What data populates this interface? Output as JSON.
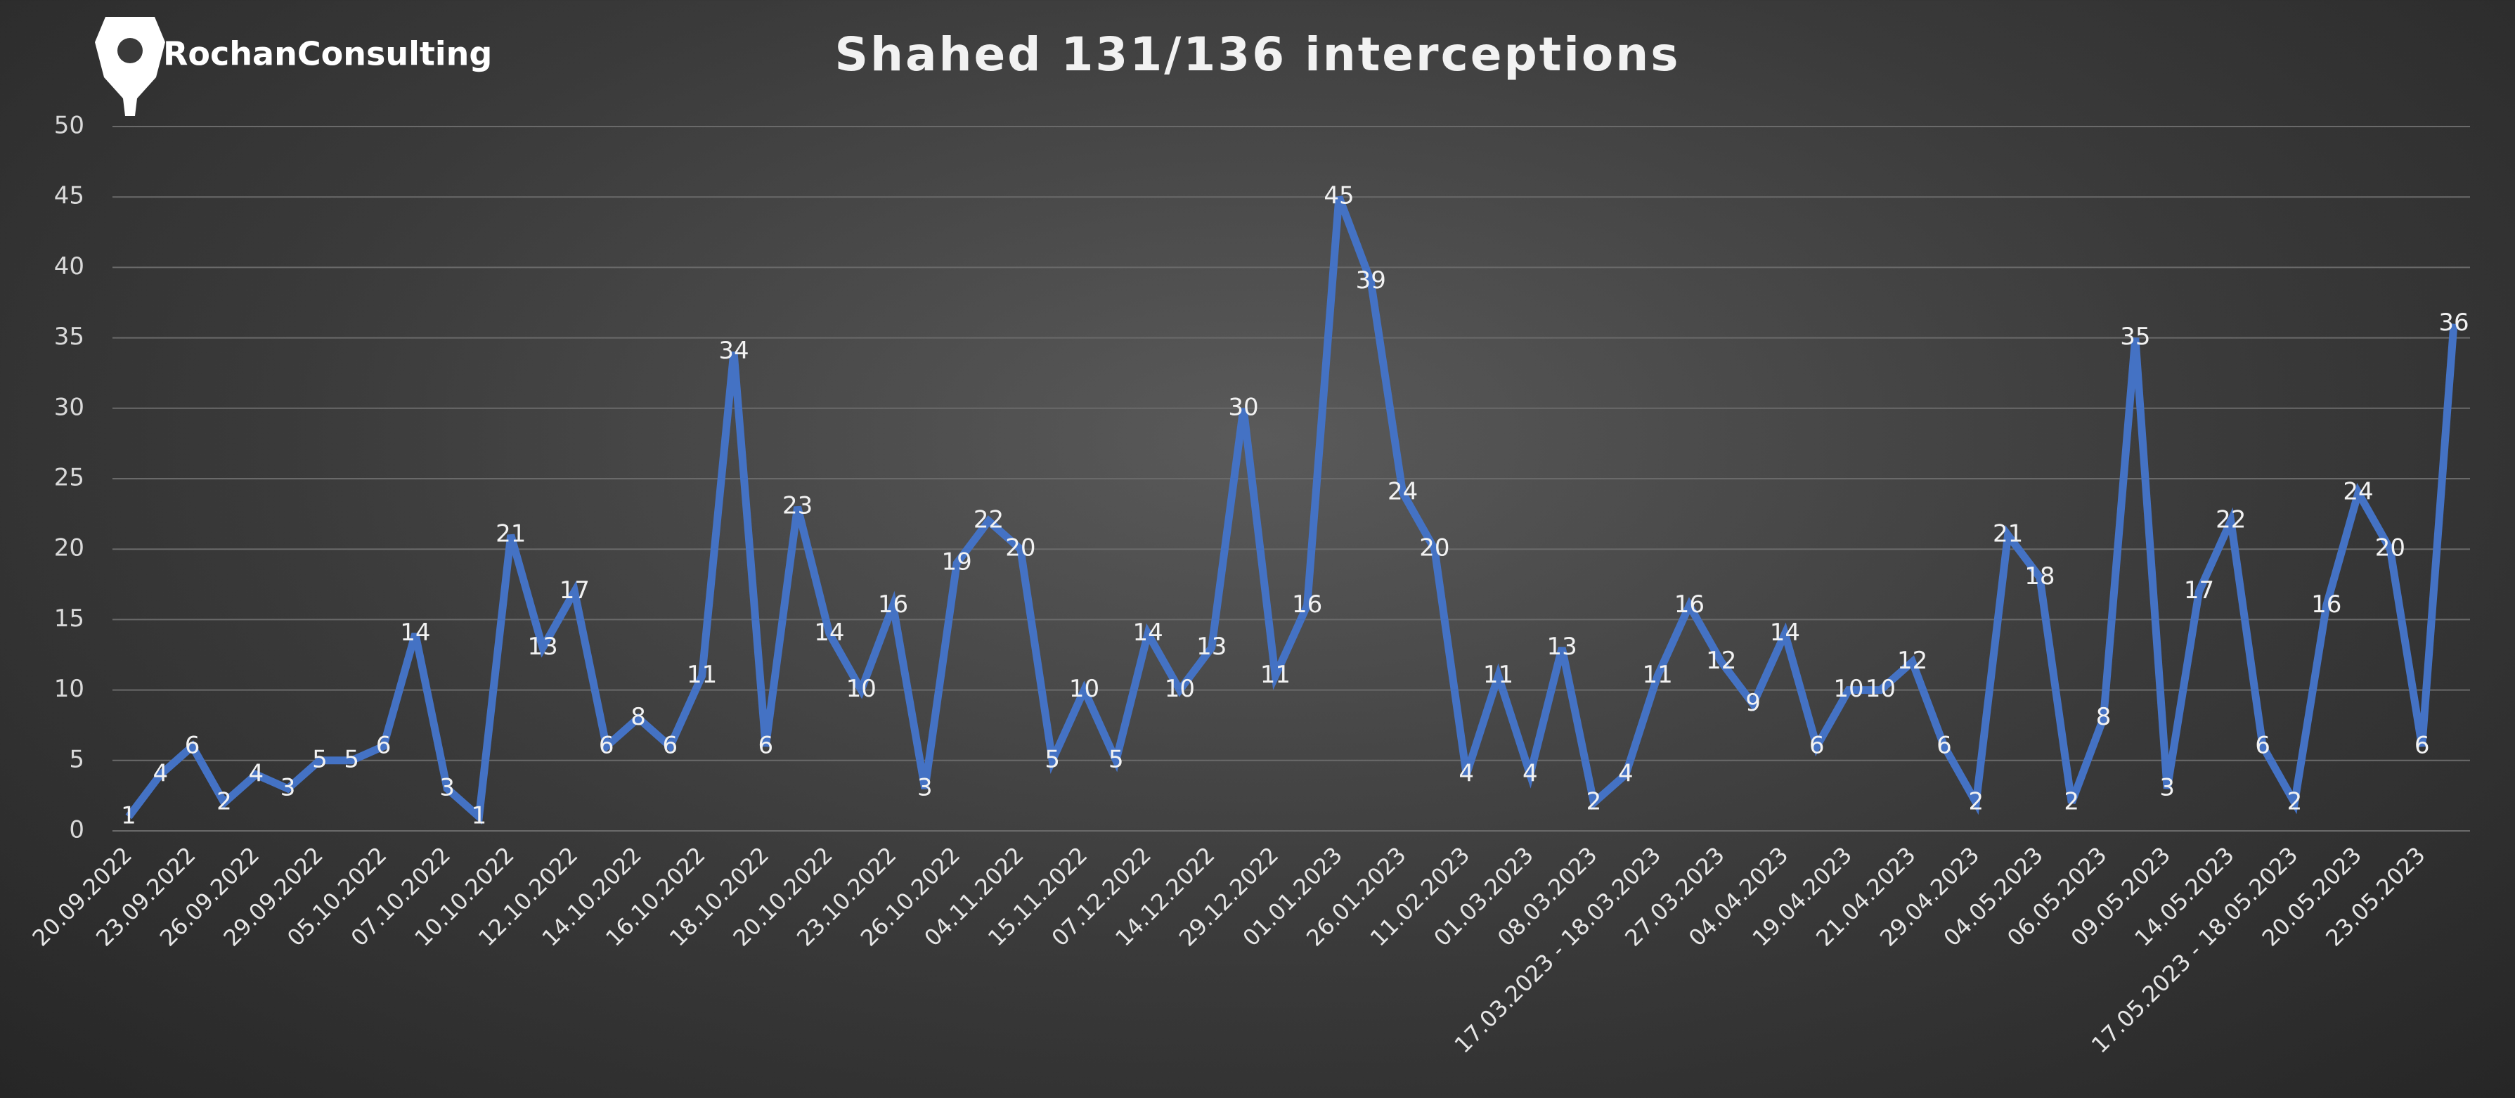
{
  "brand": "RochanConsulting",
  "chart_data": {
    "type": "line",
    "title": "Shahed 131/136 interceptions",
    "categories": [
      "20.09.2022",
      null,
      "23.09.2022",
      null,
      "26.09.2022",
      null,
      "29.09.2022",
      null,
      "05.10.2022",
      null,
      "07.10.2022",
      null,
      "10.10.2022",
      null,
      "12.10.2022",
      null,
      "14.10.2022",
      null,
      "16.10.2022",
      null,
      "18.10.2022",
      null,
      "20.10.2022",
      null,
      "23.10.2022",
      null,
      "26.10.2022",
      null,
      "04.11.2022",
      null,
      "15.11.2022",
      null,
      "07.12.2022",
      null,
      "14.12.2022",
      null,
      "29.12.2022",
      null,
      "01.01.2023",
      null,
      "26.01.2023",
      null,
      "11.02.2023",
      null,
      "01.03.2023",
      null,
      "08.03.2023",
      null,
      "17.03.2023 - 18.03.2023",
      null,
      "27.03.2023",
      null,
      "04.04.2023",
      null,
      "19.04.2023",
      null,
      "21.04.2023",
      null,
      "29.04.2023",
      null,
      "04.05.2023",
      null,
      "06.05.2023",
      null,
      "09.05.2023",
      null,
      "14.05.2023",
      null,
      "17.05.2023 - 18.05.2023",
      null,
      "20.05.2023",
      null,
      "23.05.2023",
      null
    ],
    "values": [
      1,
      4,
      6,
      2,
      4,
      3,
      5,
      5,
      6,
      14,
      3,
      1,
      21,
      13,
      17,
      6,
      8,
      6,
      11,
      34,
      6,
      23,
      14,
      10,
      16,
      3,
      19,
      22,
      20,
      5,
      10,
      5,
      14,
      10,
      13,
      30,
      11,
      16,
      45,
      39,
      24,
      20,
      4,
      11,
      4,
      13,
      2,
      4,
      11,
      16,
      12,
      9,
      14,
      6,
      10,
      10,
      12,
      6,
      2,
      21,
      18,
      2,
      8,
      35,
      3,
      17,
      22,
      6,
      2,
      16,
      24,
      20,
      6,
      36
    ],
    "color": "#4472c4",
    "ylim": [
      0,
      50
    ],
    "yticks": [
      0,
      5,
      10,
      15,
      20,
      25,
      30,
      35,
      40,
      45,
      50
    ],
    "grid": true
  }
}
